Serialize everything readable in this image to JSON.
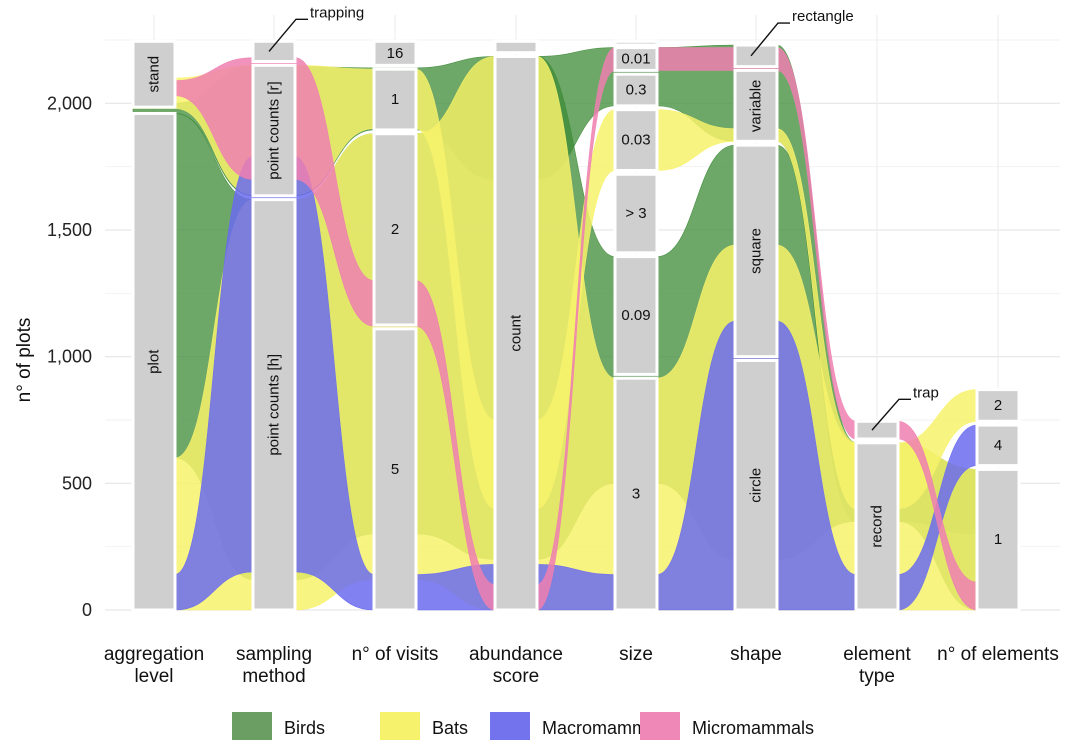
{
  "chart_data": {
    "type": "alluvial",
    "ylabel": "n° of plots",
    "ylim": [
      0,
      2250
    ],
    "yticks": [
      0,
      500,
      1000,
      1500,
      2000
    ],
    "ytick_labels": [
      "0",
      "500",
      "1,000",
      "1,500",
      "2,000"
    ],
    "grid": true,
    "legend_position": "bottom",
    "axes": [
      {
        "label": [
          "aggregation",
          "level"
        ],
        "strata": [
          {
            "name": "plot",
            "from": 0,
            "to": 1960,
            "rotated": true
          },
          {
            "name": "stand",
            "from": 1985,
            "to": 2245,
            "rotated": true
          }
        ]
      },
      {
        "label": [
          "sampling",
          "method"
        ],
        "strata": [
          {
            "name": "point counts [h]",
            "from": 0,
            "to": 1620,
            "rotated": true
          },
          {
            "name": "point counts [r]",
            "from": 1635,
            "to": 2150,
            "rotated": true
          },
          {
            "name": "trapping",
            "from": 2165,
            "to": 2245,
            "rotated": false,
            "callout": true
          }
        ]
      },
      {
        "label": [
          "n° of visits"
        ],
        "strata": [
          {
            "name": "5",
            "from": 0,
            "to": 1110
          },
          {
            "name": "2",
            "from": 1125,
            "to": 1880
          },
          {
            "name": "1",
            "from": 1895,
            "to": 2135
          },
          {
            "name": "16",
            "from": 2150,
            "to": 2245
          }
        ]
      },
      {
        "label": [
          "abundance",
          "score"
        ],
        "strata": [
          {
            "name": "count",
            "from": 0,
            "to": 2185,
            "rotated": true
          },
          {
            "name": "",
            "from": 2200,
            "to": 2245
          }
        ]
      },
      {
        "label": [
          "size"
        ],
        "strata": [
          {
            "name": "3",
            "from": 0,
            "to": 915
          },
          {
            "name": "0.09",
            "from": 930,
            "to": 1395
          },
          {
            "name": "> 3",
            "from": 1410,
            "to": 1720
          },
          {
            "name": "0.03",
            "from": 1735,
            "to": 1975
          },
          {
            "name": "0.3",
            "from": 1990,
            "to": 2115
          },
          {
            "name": "0.01",
            "from": 2130,
            "to": 2220
          },
          {
            "name": "",
            "from": 2230,
            "to": 2245
          }
        ]
      },
      {
        "label": [
          "shape"
        ],
        "strata": [
          {
            "name": "circle",
            "from": 0,
            "to": 985,
            "rotated": true
          },
          {
            "name": "square",
            "from": 1000,
            "to": 1835,
            "rotated": true
          },
          {
            "name": "variable",
            "from": 1850,
            "to": 2130,
            "rotated": true
          },
          {
            "name": "rectangle",
            "from": 2145,
            "to": 2230,
            "rotated": false,
            "callout": true
          }
        ]
      },
      {
        "label": [
          "element",
          "type"
        ],
        "strata": [
          {
            "name": "record",
            "from": 0,
            "to": 660,
            "rotated": true
          },
          {
            "name": "trap",
            "from": 675,
            "to": 745,
            "rotated": false,
            "callout": true
          }
        ]
      },
      {
        "label": [
          "n° of elements"
        ],
        "strata": [
          {
            "name": "1",
            "from": 0,
            "to": 555
          },
          {
            "name": "4",
            "from": 570,
            "to": 730
          },
          {
            "name": "2",
            "from": 745,
            "to": 870
          }
        ]
      }
    ],
    "series": [
      {
        "name": "Birds",
        "color": "#3d8b37",
        "flows": [
          [
            [
              600,
              1960
            ],
            [
              120,
              1620
            ],
            [
              300,
              1880
            ],
            [
              200,
              2185
            ],
            [
              500,
              1395
            ],
            [
              200,
              1835
            ],
            [
              350,
              660
            ],
            [
              0,
              555
            ]
          ],
          [
            [
              1960,
              2000
            ],
            [
              1635,
              2145
            ],
            [
              1895,
              2140
            ],
            [
              1700,
              2185
            ],
            [
              1990,
              2220
            ],
            [
              1850,
              2230
            ],
            [
              350,
              660
            ],
            [
              300,
              555
            ]
          ]
        ]
      },
      {
        "name": "Bats",
        "color": "#f7f26b",
        "flows": [
          [
            [
              0,
              600
            ],
            [
              0,
              1620
            ],
            [
              120,
              1880
            ],
            [
              0,
              2185
            ],
            [
              0,
              915
            ],
            [
              0,
              1440
            ],
            [
              0,
              660
            ],
            [
              0,
              555
            ]
          ],
          [
            [
              1980,
              2100
            ],
            [
              1640,
              2150
            ],
            [
              1900,
              2135
            ],
            [
              400,
              750
            ],
            [
              1735,
              1975
            ],
            [
              1850,
              1900
            ],
            [
              400,
              660
            ],
            [
              745,
              870
            ]
          ]
        ]
      },
      {
        "name": "Macromammals",
        "color": "#6b6bf0",
        "flows": [
          [
            [
              0,
              140
            ],
            [
              150,
              1790
            ],
            [
              0,
              140
            ],
            [
              0,
              180
            ],
            [
              0,
              140
            ],
            [
              0,
              1140
            ],
            [
              0,
              140
            ],
            [
              570,
              730
            ]
          ]
        ]
      },
      {
        "name": "Micromammals",
        "color": "#ee7fb0",
        "flows": [
          [
            [
              2030,
              2090
            ],
            [
              1700,
              2180
            ],
            [
              1120,
              1300
            ],
            [
              0,
              100
            ],
            [
              2130,
              2220
            ],
            [
              2130,
              2220
            ],
            [
              675,
              745
            ],
            [
              0,
              110
            ]
          ]
        ]
      }
    ]
  },
  "legend": [
    {
      "label": "Birds",
      "color": "#6a9e63"
    },
    {
      "label": "Bats",
      "color": "#f7f26b"
    },
    {
      "label": "Macromammals",
      "color": "#7373ee"
    },
    {
      "label": "Micromammals",
      "color": "#ef87b7"
    }
  ]
}
